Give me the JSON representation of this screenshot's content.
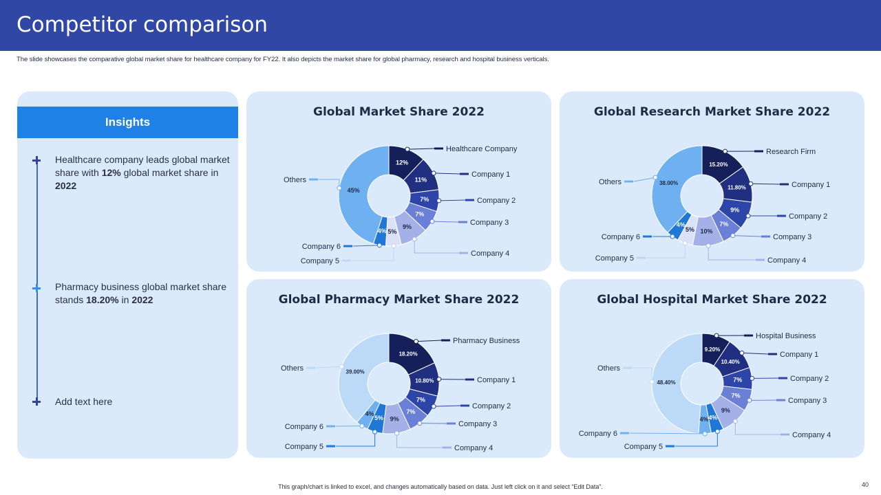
{
  "header": {
    "title": "Competitor comparison",
    "subtitle": "The slide showcases the comparative global market share for healthcare company for FY22. It also depicts the market share for global pharmacy, research and hospital business verticals."
  },
  "insights": {
    "title": "Insights",
    "items": [
      {
        "pre": "Healthcare company leads global market share with ",
        "b1": "12%",
        "mid": " global market share in ",
        "b2": "2022"
      },
      {
        "pre": "Pharmacy business global market share stands ",
        "b1": "18.20%",
        "mid": " in ",
        "b2": "2022"
      },
      {
        "pre": "Add text here",
        "b1": "",
        "mid": "",
        "b2": ""
      }
    ]
  },
  "footer": "This graph/chart is linked to excel, and changes automatically based on data. Just left click on it and select “Edit Data”.",
  "page_number": "40",
  "chart_data": [
    {
      "type": "pie",
      "title": "Global Market Share 2022",
      "categories": [
        "Healthcare Company",
        "Company 1",
        "Company 2",
        "Company 3",
        "Company 4",
        "Company 5",
        "Company 6",
        "Others"
      ],
      "values": [
        12,
        11,
        7,
        7,
        9,
        5,
        4,
        45
      ],
      "data_labels": [
        "12%",
        "11%",
        "7%",
        "7%",
        "9%",
        "5%",
        "4%",
        "45%"
      ],
      "colors": [
        "#15205a",
        "#202f80",
        "#2d44a8",
        "#6a7fd6",
        "#a3b1e8",
        "#dbe1f7",
        "#1f78d6",
        "#6fb0f0"
      ]
    },
    {
      "type": "pie",
      "title": "Global Research Market Share 2022",
      "categories": [
        "Research Firm",
        "Company 1",
        "Company 2",
        "Company 3",
        "Company 4",
        "Company 5",
        "Company 6",
        "Others"
      ],
      "values": [
        15.2,
        11.8,
        9,
        7,
        10,
        5,
        4,
        38
      ],
      "data_labels": [
        "15.20%",
        "11.80%",
        "9%",
        "7%",
        "10%",
        "5%",
        "4%",
        "38.00%"
      ],
      "colors": [
        "#15205a",
        "#202f80",
        "#2d44a8",
        "#6a7fd6",
        "#a3b1e8",
        "#dbe1f7",
        "#1f78d6",
        "#6fb0f0"
      ]
    },
    {
      "type": "pie",
      "title": "Global Pharmacy Market Share 2022",
      "categories": [
        "Pharmacy Business",
        "Company 1",
        "Company 2",
        "Company 3",
        "Company 4",
        "Company 5",
        "Company 6",
        "Others"
      ],
      "values": [
        18.2,
        10.8,
        7,
        7,
        9,
        5,
        4,
        39
      ],
      "data_labels": [
        "18.20%",
        "10.80%",
        "7%",
        "7%",
        "9%",
        "5%",
        "4%",
        "39.00%"
      ],
      "colors": [
        "#15205a",
        "#202f80",
        "#2d44a8",
        "#6a7fd6",
        "#a3b1e8",
        "#1f78d6",
        "#6fb0f0",
        "#bcd9f7"
      ]
    },
    {
      "type": "pie",
      "title": "Global Hospital Market Share 2022",
      "categories": [
        "Hospital Business",
        "Company 1",
        "Company 2",
        "Company 3",
        "Company 4",
        "Company 5",
        "Company 6",
        "Others"
      ],
      "values": [
        9.2,
        10.4,
        7,
        7,
        9,
        4,
        4,
        48.4
      ],
      "data_labels": [
        "9.20%",
        "10.40%",
        "7%",
        "7%",
        "9%",
        "4%",
        "4%",
        "48.40%"
      ],
      "colors": [
        "#15205a",
        "#202f80",
        "#2d44a8",
        "#6a7fd6",
        "#a3b1e8",
        "#1f78d6",
        "#6fb0f0",
        "#bcd9f7"
      ]
    }
  ]
}
